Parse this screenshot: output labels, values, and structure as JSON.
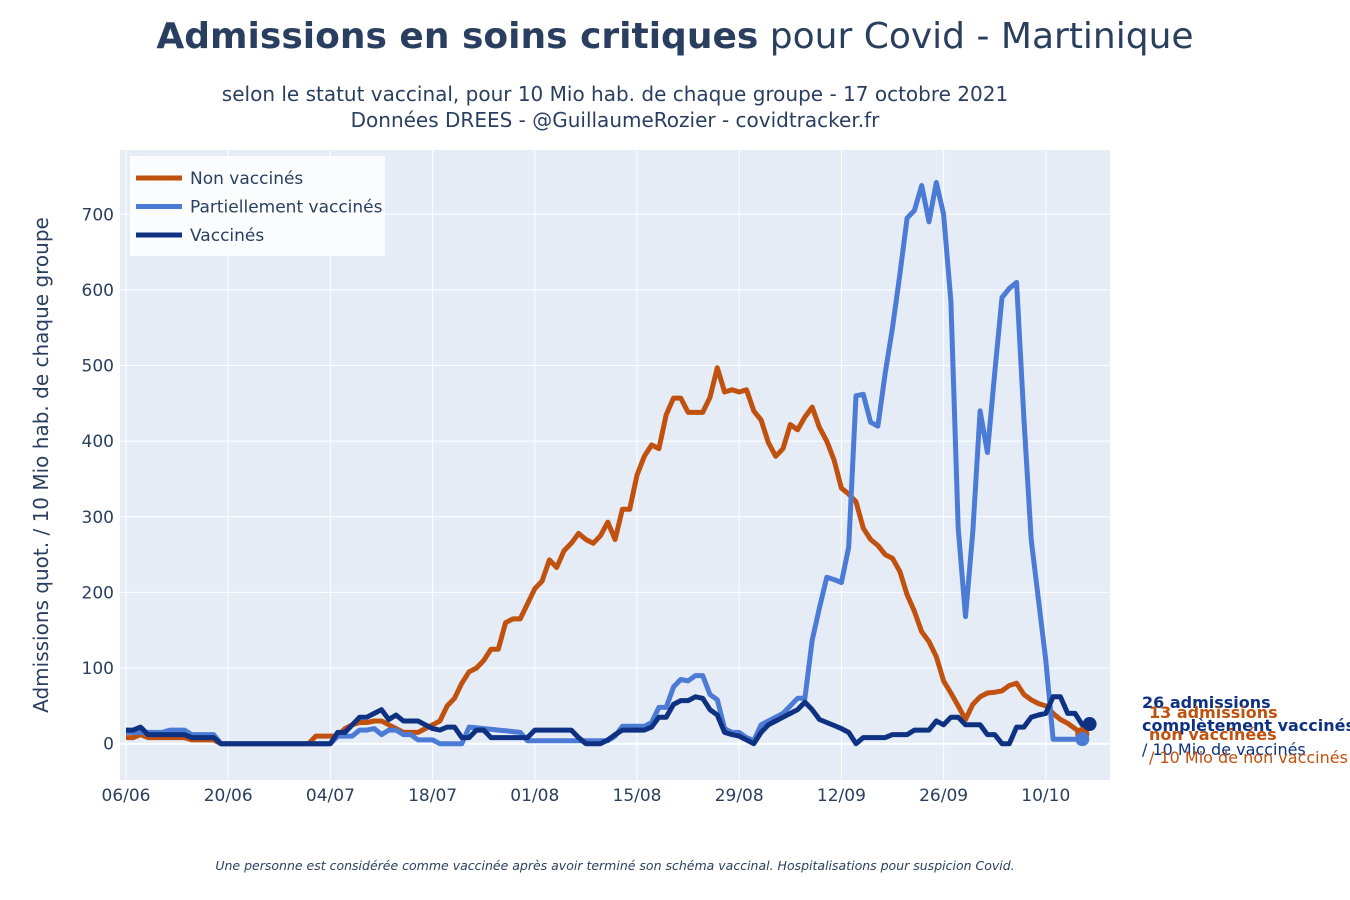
{
  "title": {
    "bold": "Admissions en soins critiques",
    "rest": " pour Covid - Martinique"
  },
  "subtitle_line1": "selon le statut vaccinal, pour 10 Mio hab. de chaque groupe - 17 octobre 2021",
  "subtitle_line2": "Données DREES - @GuillaumeRozier - covidtracker.fr",
  "footnote": "Une personne est considérée comme vaccinée après avoir terminé son schéma vaccinal. Hospitalisations pour suspicion Covid.",
  "annotations": {
    "vacc_line1": "26 admissions",
    "vacc_line2": "complètement vaccinés",
    "vacc_line3": "/ 10 Mio de vaccinés",
    "nonvacc_line1": "13 admissions",
    "nonvacc_line2": "non vaccinées",
    "nonvacc_line3": "/ 10 Mio de non vaccinés"
  },
  "chart_data": {
    "type": "line",
    "title": "Admissions en soins critiques pour Covid - Martinique",
    "ylabel": "Admissions quot. / 10 Mio hab. de chaque groupe",
    "xlabel": "",
    "x_start": "2021-06-06",
    "x_end": "2021-10-17",
    "x_ticks": [
      "06/06",
      "20/06",
      "04/07",
      "18/07",
      "01/08",
      "15/08",
      "29/08",
      "12/09",
      "26/09",
      "10/10"
    ],
    "ylim": [
      -48,
      785
    ],
    "y_ticks": [
      0,
      100,
      200,
      300,
      400,
      500,
      600,
      700
    ],
    "grid": true,
    "legend_position": "top-left",
    "series": [
      {
        "name": "Non vaccinés",
        "color": "#c1510e",
        "values": [
          8,
          8,
          12,
          8,
          8,
          8,
          8,
          8,
          8,
          5,
          5,
          5,
          5,
          0,
          0,
          0,
          0,
          0,
          0,
          0,
          0,
          0,
          0,
          0,
          0,
          0,
          10,
          10,
          10,
          10,
          20,
          25,
          28,
          28,
          30,
          30,
          25,
          20,
          15,
          15,
          15,
          20,
          25,
          30,
          50,
          60,
          80,
          95,
          100,
          110,
          125,
          125,
          160,
          165,
          165,
          185,
          205,
          215,
          243,
          233,
          255,
          265,
          278,
          270,
          265,
          275,
          293,
          270,
          310,
          310,
          355,
          380,
          395,
          390,
          435,
          457,
          457,
          438,
          438,
          438,
          458,
          497,
          465,
          468,
          465,
          468,
          440,
          428,
          398,
          380,
          390,
          422,
          415,
          432,
          445,
          418,
          400,
          375,
          338,
          330,
          320,
          285,
          270,
          262,
          250,
          245,
          228,
          197,
          175,
          148,
          135,
          115,
          83,
          67,
          50,
          32,
          52,
          62,
          67,
          68,
          70,
          77,
          80,
          65,
          58,
          53,
          50,
          40,
          32,
          27,
          20,
          13
        ]
      },
      {
        "name": "Partiellement vaccinés",
        "color": "#4c7bd6",
        "values": [
          15,
          15,
          15,
          15,
          15,
          15,
          18,
          18,
          18,
          12,
          12,
          12,
          12,
          0,
          0,
          0,
          0,
          0,
          0,
          0,
          0,
          0,
          0,
          0,
          0,
          0,
          0,
          0,
          0,
          10,
          10,
          10,
          18,
          18,
          20,
          12,
          18,
          18,
          12,
          12,
          5,
          5,
          5,
          0,
          0,
          0,
          0,
          22,
          21,
          20,
          19,
          18,
          17,
          16,
          15,
          4,
          4,
          4,
          4,
          4,
          4,
          4,
          4,
          4,
          4,
          4,
          4,
          10,
          23,
          23,
          23,
          23,
          28,
          48,
          48,
          75,
          85,
          83,
          90,
          90,
          65,
          58,
          20,
          15,
          15,
          8,
          4,
          25,
          30,
          35,
          40,
          50,
          60,
          60,
          137,
          180,
          220,
          217,
          213,
          260,
          460,
          462,
          425,
          420,
          490,
          550,
          620,
          695,
          705,
          738,
          690,
          742,
          700,
          585,
          285,
          168,
          280,
          440,
          385,
          490,
          590,
          602,
          610,
          430,
          270,
          190,
          110,
          6,
          6,
          6,
          6,
          6
        ]
      },
      {
        "name": "Vaccinés",
        "color": "#0e3182",
        "values": [
          18,
          18,
          22,
          12,
          12,
          12,
          12,
          12,
          12,
          8,
          8,
          8,
          8,
          0,
          0,
          0,
          0,
          0,
          0,
          0,
          0,
          0,
          0,
          0,
          0,
          0,
          0,
          0,
          0,
          15,
          15,
          25,
          35,
          35,
          40,
          45,
          32,
          38,
          30,
          30,
          30,
          25,
          20,
          18,
          22,
          22,
          8,
          8,
          18,
          18,
          8,
          8,
          8,
          8,
          8,
          8,
          18,
          18,
          18,
          18,
          18,
          18,
          8,
          0,
          0,
          0,
          5,
          12,
          18,
          18,
          18,
          18,
          22,
          35,
          35,
          52,
          57,
          57,
          62,
          60,
          45,
          38,
          15,
          12,
          10,
          5,
          0,
          15,
          25,
          30,
          35,
          40,
          45,
          55,
          45,
          32,
          28,
          24,
          20,
          15,
          0,
          8,
          8,
          8,
          8,
          12,
          12,
          12,
          18,
          18,
          18,
          30,
          25,
          35,
          35,
          25,
          25,
          25,
          12,
          12,
          0,
          0,
          22,
          22,
          35,
          38,
          40,
          62,
          62,
          40,
          40,
          25,
          26
        ]
      }
    ]
  }
}
